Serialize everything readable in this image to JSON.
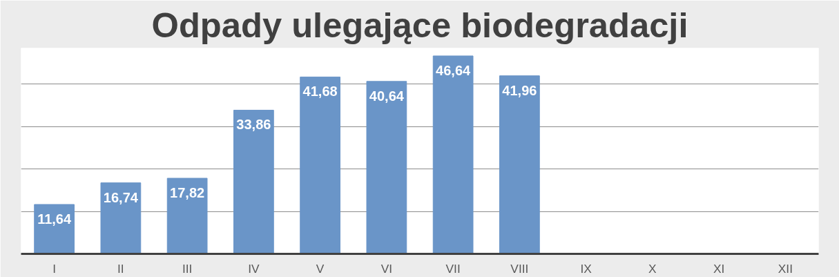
{
  "chart_data": {
    "type": "bar",
    "title": "Odpady ulegające biodegradacji",
    "categories": [
      "I",
      "II",
      "III",
      "IV",
      "V",
      "VI",
      "VII",
      "VIII",
      "IX",
      "X",
      "XI",
      "XII"
    ],
    "values": [
      11.64,
      16.74,
      17.82,
      33.86,
      41.68,
      40.64,
      46.64,
      41.96,
      null,
      null,
      null,
      null
    ],
    "value_labels": [
      "11,64",
      "16,74",
      "17,82",
      "33,86",
      "41,68",
      "40,64",
      "46,64",
      "41,96",
      null,
      null,
      null,
      null
    ],
    "color": "#6a95c8",
    "yticks": [
      {
        "value": 0,
        "label": null
      },
      {
        "value": 10,
        "label": null
      },
      {
        "value": 20,
        "label": null
      },
      {
        "value": 30,
        "label": null
      },
      {
        "value": 40,
        "label": null
      }
    ],
    "tick_labels": "x",
    "grid": "y"
  }
}
